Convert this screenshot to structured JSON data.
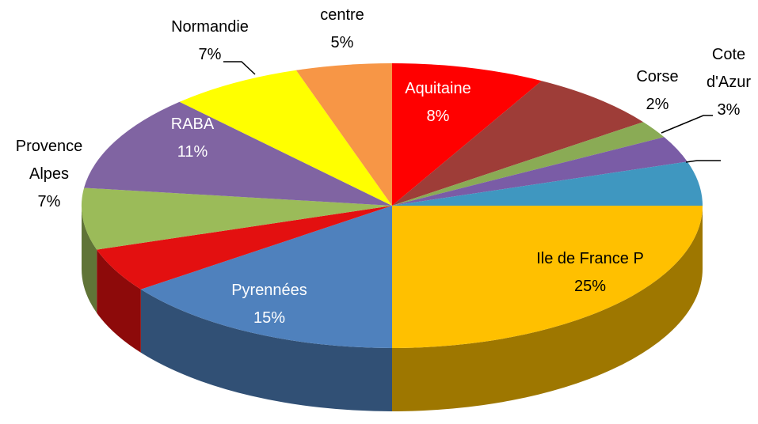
{
  "chart_data": {
    "type": "pie3d",
    "categories": [
      "Aquitaine",
      null,
      "Corse",
      "Cote d'Azur",
      null,
      "Ile de France P",
      "Pyrennées",
      null,
      "Provence Alpes",
      "RABA",
      "Normandie",
      "centre"
    ],
    "values": [
      8,
      7,
      2,
      3,
      5,
      25,
      15,
      5,
      7,
      11,
      7,
      5
    ],
    "value_labels": [
      "8%",
      null,
      "2%",
      "3%",
      null,
      "25%",
      "15%",
      null,
      "7%",
      "11%",
      "7%",
      "5%"
    ],
    "colors": [
      "#ff0000",
      "#9e3d38",
      "#8aab55",
      "#7a5ca6",
      "#3f97c0",
      "#ffc000",
      "#4f81bd",
      "#e31010",
      "#9bbb59",
      "#8064a2",
      "#ffff00",
      "#f79646"
    ]
  }
}
